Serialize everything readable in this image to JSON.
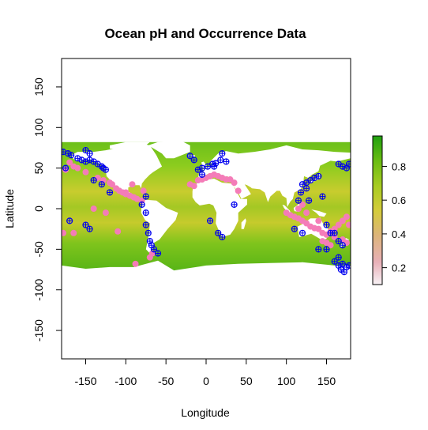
{
  "chart_data": {
    "type": "heatmap",
    "title": "Ocean pH and Occurrence Data",
    "xlabel": "Longitude",
    "ylabel": "Latitude",
    "xlim": [
      -180,
      180
    ],
    "ylim": [
      -185,
      185
    ],
    "x_ticks": [
      -150,
      -100,
      -50,
      0,
      50,
      100,
      150
    ],
    "y_ticks": [
      -150,
      -100,
      -50,
      0,
      50,
      100,
      150
    ],
    "colorbar": {
      "range": [
        0.1,
        0.98
      ],
      "ticks": [
        0.2,
        0.4,
        0.6,
        0.8
      ],
      "colors": [
        "#f7f2f5",
        "#e8b0b8",
        "#dcb47a",
        "#d4cc3a",
        "#a9cc22",
        "#6bbd12",
        "#20a010"
      ]
    },
    "raster_extent": {
      "lon": [
        -180,
        180
      ],
      "lat": [
        -78,
        82
      ]
    },
    "colors": {
      "ocean_high": "#5cba18",
      "ocean_mid": "#8ccc1e",
      "ocean_band": "#c8cc2e",
      "land": "#ffffff",
      "occurrence_absence": "#f47cb8",
      "occurrence_presence": "#0000ee"
    },
    "series": [
      {
        "marker": "pink-filled-circle",
        "points": [
          [
            -178,
            -30
          ],
          [
            -170,
            57
          ],
          [
            -165,
            52
          ],
          [
            -160,
            50
          ],
          [
            -150,
            45
          ],
          [
            -135,
            38
          ],
          [
            -128,
            35
          ],
          [
            -120,
            32
          ],
          [
            -117,
            30
          ],
          [
            -112,
            25
          ],
          [
            -108,
            22
          ],
          [
            -104,
            20
          ],
          [
            -100,
            18
          ],
          [
            -95,
            16
          ],
          [
            -90,
            14
          ],
          [
            -86,
            12
          ],
          [
            -80,
            10
          ],
          [
            -125,
            -5
          ],
          [
            -140,
            0
          ],
          [
            -110,
            -28
          ],
          [
            -100,
            20
          ],
          [
            -92,
            30
          ],
          [
            -88,
            -68
          ],
          [
            -70,
            -60
          ],
          [
            -67,
            -55
          ],
          [
            -78,
            22
          ],
          [
            -175,
            48
          ],
          [
            -20,
            30
          ],
          [
            -10,
            35
          ],
          [
            0,
            38
          ],
          [
            5,
            40
          ],
          [
            10,
            42
          ],
          [
            15,
            40
          ],
          [
            20,
            38
          ],
          [
            25,
            36
          ],
          [
            30,
            36
          ],
          [
            35,
            32
          ],
          [
            -5,
            36
          ],
          [
            -15,
            28
          ],
          [
            40,
            22
          ],
          [
            -165,
            -30
          ],
          [
            100,
            -5
          ],
          [
            105,
            -8
          ],
          [
            110,
            -10
          ],
          [
            115,
            -12
          ],
          [
            120,
            -15
          ],
          [
            125,
            -18
          ],
          [
            130,
            -22
          ],
          [
            135,
            -24
          ],
          [
            140,
            -25
          ],
          [
            145,
            -30
          ],
          [
            150,
            -32
          ],
          [
            155,
            -28
          ],
          [
            160,
            -25
          ],
          [
            165,
            -20
          ],
          [
            170,
            -15
          ],
          [
            175,
            -10
          ],
          [
            178,
            -20
          ],
          [
            145,
            -40
          ],
          [
            150,
            -42
          ],
          [
            155,
            -45
          ],
          [
            120,
            5
          ],
          [
            125,
            -5
          ],
          [
            115,
            0
          ],
          [
            140,
            -15
          ],
          [
            160,
            -35
          ],
          [
            170,
            -38
          ],
          [
            175,
            -42
          ]
        ]
      },
      {
        "marker": "blue-circle-plus",
        "points": [
          [
            -178,
            70
          ],
          [
            -172,
            68
          ],
          [
            -168,
            66
          ],
          [
            -160,
            62
          ],
          [
            -155,
            60
          ],
          [
            -150,
            58
          ],
          [
            -145,
            60
          ],
          [
            -140,
            58
          ],
          [
            -135,
            55
          ],
          [
            -130,
            52
          ],
          [
            -128,
            50
          ],
          [
            -125,
            48
          ],
          [
            -150,
            72
          ],
          [
            -145,
            68
          ],
          [
            -120,
            20
          ],
          [
            -130,
            30
          ],
          [
            -140,
            35
          ],
          [
            -170,
            -15
          ],
          [
            -150,
            -20
          ],
          [
            -145,
            -25
          ],
          [
            -175,
            50
          ],
          [
            -75,
            -20
          ],
          [
            -72,
            -30
          ],
          [
            -70,
            -40
          ],
          [
            -68,
            -45
          ],
          [
            -65,
            -50
          ],
          [
            -60,
            -55
          ],
          [
            -75,
            -5
          ],
          [
            -80,
            5
          ],
          [
            -75,
            15
          ],
          [
            -10,
            48
          ],
          [
            -5,
            50
          ],
          [
            2,
            52
          ],
          [
            8,
            55
          ],
          [
            12,
            56
          ],
          [
            18,
            60
          ],
          [
            -20,
            65
          ],
          [
            -15,
            60
          ],
          [
            20,
            68
          ],
          [
            -5,
            42
          ],
          [
            10,
            52
          ],
          [
            25,
            58
          ],
          [
            5,
            -15
          ],
          [
            15,
            -30
          ],
          [
            20,
            -35
          ],
          [
            35,
            5
          ],
          [
            120,
            30
          ],
          [
            125,
            32
          ],
          [
            130,
            35
          ],
          [
            135,
            38
          ],
          [
            140,
            40
          ],
          [
            125,
            25
          ],
          [
            118,
            20
          ],
          [
            115,
            10
          ],
          [
            128,
            10
          ],
          [
            145,
            15
          ],
          [
            150,
            -20
          ],
          [
            155,
            -30
          ],
          [
            160,
            -30
          ],
          [
            165,
            -40
          ],
          [
            170,
            -45
          ],
          [
            165,
            -60
          ],
          [
            160,
            -65
          ],
          [
            165,
            -70
          ],
          [
            170,
            -68
          ],
          [
            175,
            -72
          ],
          [
            175,
            50
          ],
          [
            170,
            52
          ],
          [
            178,
            55
          ],
          [
            165,
            55
          ],
          [
            110,
            -25
          ],
          [
            120,
            -30
          ],
          [
            140,
            -50
          ],
          [
            150,
            -50
          ],
          [
            168,
            -75
          ],
          [
            172,
            -78
          ],
          [
            178,
            -70
          ]
        ]
      }
    ]
  }
}
